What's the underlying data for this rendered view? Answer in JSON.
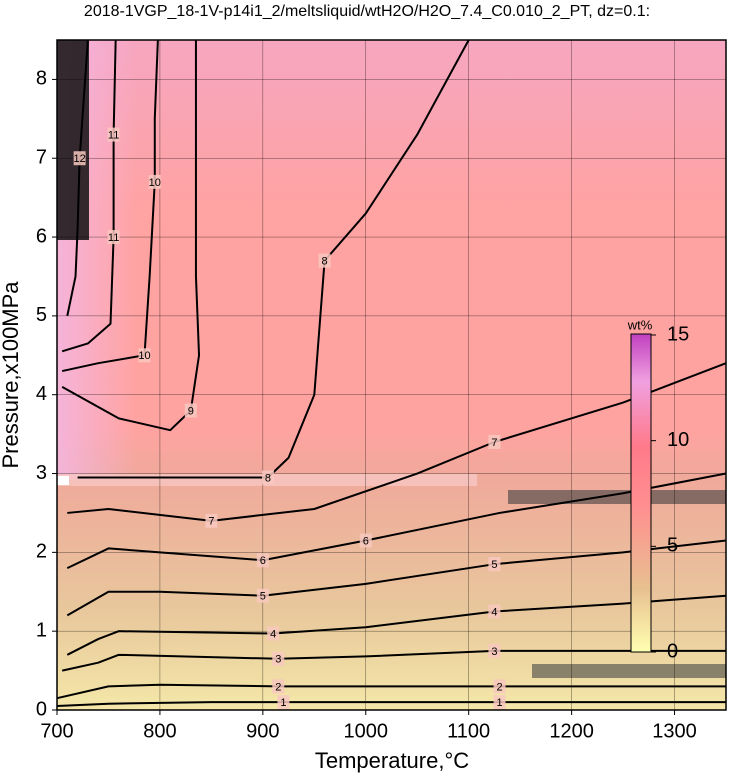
{
  "chart_data": {
    "type": "contour",
    "title": "2018-1VGP_18-1V-p14i1_2/meltsliquid/wtH2O/H2O_7.4_C0.010_2_PT, dz=0.1:",
    "x_label": "Temperature,°C",
    "y_label": "Pressure,x100MPa",
    "xlim": [
      700,
      1350
    ],
    "xticks": [
      700,
      800,
      900,
      1000,
      1100,
      1200,
      1300
    ],
    "ylim": [
      0,
      8.5
    ],
    "yticks": [
      0,
      1,
      2,
      3,
      4,
      5,
      6,
      7,
      8
    ],
    "grid": true,
    "line_color": "#000000",
    "colorbar": {
      "label": "wt%",
      "clim": [
        0,
        15
      ],
      "ticks": [
        0,
        5,
        10,
        15
      ]
    },
    "contours": [
      {
        "level": 1,
        "x": [
          700,
          750,
          850,
          920,
          1000,
          1130,
          1250,
          1350
        ],
        "y": [
          0.05,
          0.08,
          0.1,
          0.1,
          0.1,
          0.1,
          0.1,
          0.1
        ]
      },
      {
        "level": 2,
        "x": [
          700,
          750,
          800,
          915,
          1000,
          1130,
          1250,
          1350
        ],
        "y": [
          0.15,
          0.3,
          0.32,
          0.3,
          0.3,
          0.3,
          0.3,
          0.3
        ]
      },
      {
        "level": 3,
        "x": [
          705,
          740,
          760,
          915,
          1000,
          1125,
          1250,
          1350
        ],
        "y": [
          0.5,
          0.6,
          0.7,
          0.65,
          0.68,
          0.75,
          0.75,
          0.75
        ]
      },
      {
        "level": 4,
        "x": [
          710,
          740,
          760,
          910,
          1000,
          1125,
          1250,
          1350
        ],
        "y": [
          0.7,
          0.9,
          1.0,
          0.97,
          1.05,
          1.25,
          1.35,
          1.45
        ]
      },
      {
        "level": 5,
        "x": [
          710,
          750,
          800,
          900,
          1000,
          1125,
          1250,
          1350
        ],
        "y": [
          1.2,
          1.5,
          1.5,
          1.45,
          1.6,
          1.85,
          2.0,
          2.15
        ]
      },
      {
        "level": 6,
        "x": [
          710,
          750,
          800,
          900,
          1000,
          1130,
          1250,
          1350
        ],
        "y": [
          1.8,
          2.05,
          2.0,
          1.9,
          2.15,
          2.5,
          2.75,
          3.0
        ]
      },
      {
        "level": 7,
        "x": [
          710,
          750,
          850,
          950,
          1050,
          1125,
          1250,
          1350
        ],
        "y": [
          2.5,
          2.55,
          2.4,
          2.55,
          3.0,
          3.4,
          3.9,
          4.4
        ]
      },
      {
        "level": 8,
        "x": [
          720,
          800,
          905,
          925,
          950,
          960,
          1000,
          1050,
          1100
        ],
        "y": [
          2.95,
          2.95,
          2.95,
          3.2,
          4.0,
          5.7,
          6.3,
          7.3,
          8.5
        ]
      },
      {
        "level": 9,
        "x": [
          705,
          760,
          810,
          830,
          838,
          835,
          835,
          835
        ],
        "y": [
          4.1,
          3.7,
          3.55,
          3.8,
          4.5,
          5.5,
          7.0,
          8.5
        ]
      },
      {
        "level": 10,
        "x": [
          705,
          740,
          785,
          790,
          795,
          795,
          798
        ],
        "y": [
          4.3,
          4.4,
          4.5,
          5.5,
          6.7,
          7.5,
          8.5
        ]
      },
      {
        "level": 11,
        "x": [
          705,
          730,
          752,
          755,
          755,
          757
        ],
        "y": [
          4.55,
          4.65,
          4.9,
          6.0,
          7.3,
          8.5
        ]
      },
      {
        "level": 12,
        "x": [
          710,
          718,
          720,
          722,
          730
        ],
        "y": [
          5.0,
          5.5,
          6.1,
          7.0,
          8.5
        ]
      }
    ]
  }
}
